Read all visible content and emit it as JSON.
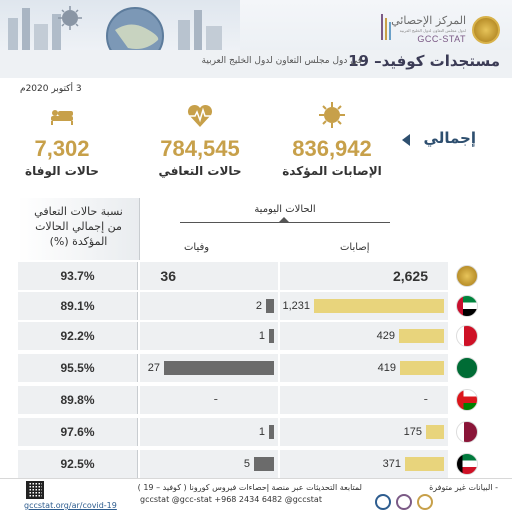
{
  "header": {
    "logo_ar": "المركز الإحصائي",
    "logo_sub": "لدول مجلس التعاون لدول الخليج العربية",
    "logo_en": "GCC-STAT",
    "title": "مستجدات كوفيد– 19",
    "subtitle": "في دول مجلس التعاون لدول الخليج العربية",
    "date": "3 أكتوبر 2020م"
  },
  "summary": {
    "label": "إجمالي",
    "confirmed": {
      "value": "836,942",
      "label": "الإصابات المؤكدة",
      "icon": "virus-icon"
    },
    "recovered": {
      "value": "784,545",
      "label": "حالات التعافي",
      "icon": "heartbeat-icon"
    },
    "deaths": {
      "value": "7,302",
      "label": "حالات الوفاة",
      "icon": "patient-bed-icon"
    }
  },
  "table": {
    "ratio_header_line1": "نسبة حالات التعافي",
    "ratio_header_line2": "من إجمالي الحالات",
    "ratio_header_line3": "المؤكدة (%)",
    "daily_header": "الحالات اليومية",
    "cases_header": "إصابات",
    "deaths_header": "وفيات",
    "rows": [
      {
        "country": "GCC total",
        "flag": "gcc-seal-icon",
        "cases": "2,625",
        "deaths": "36",
        "ratio": "93.7%",
        "cases_bar": 0,
        "deaths_bar": 0
      },
      {
        "country": "UAE",
        "flag": "uae-flag-icon",
        "cases": "1,231",
        "deaths": "2",
        "ratio": "89.1%",
        "cases_bar": 1231,
        "deaths_bar": 2
      },
      {
        "country": "Bahrain",
        "flag": "bahrain-flag-icon",
        "cases": "429",
        "deaths": "1",
        "ratio": "92.2%",
        "cases_bar": 429,
        "deaths_bar": 1
      },
      {
        "country": "Saudi Arabia",
        "flag": "saudi-flag-icon",
        "cases": "419",
        "deaths": "27",
        "ratio": "95.5%",
        "cases_bar": 419,
        "deaths_bar": 27
      },
      {
        "country": "Oman",
        "flag": "oman-flag-icon",
        "cases": "-",
        "deaths": "-",
        "ratio": "89.8%",
        "cases_bar": 0,
        "deaths_bar": 0
      },
      {
        "country": "Qatar",
        "flag": "qatar-flag-icon",
        "cases": "175",
        "deaths": "1",
        "ratio": "97.6%",
        "cases_bar": 175,
        "deaths_bar": 1
      },
      {
        "country": "Kuwait",
        "flag": "kuwait-flag-icon",
        "cases": "371",
        "deaths": "5",
        "ratio": "92.5%",
        "cases_bar": 371,
        "deaths_bar": 5
      }
    ]
  },
  "footer": {
    "follow": "لمتابعة التحديثات عبر منصة إحصاءات فيروس كورونا ( كوفيد – 19 )",
    "na": "- البيانات غير متوفرة",
    "socials": "gccstat  @gcc-stat  +968 2434 6482  @gccstat",
    "url": "gccstat.org/ar/covid-19"
  },
  "colors": {
    "accent": "#c7a04a",
    "cases_bar": "#e8d47c",
    "deaths_bar": "#6b6b6b",
    "title": "#3b3b55"
  }
}
